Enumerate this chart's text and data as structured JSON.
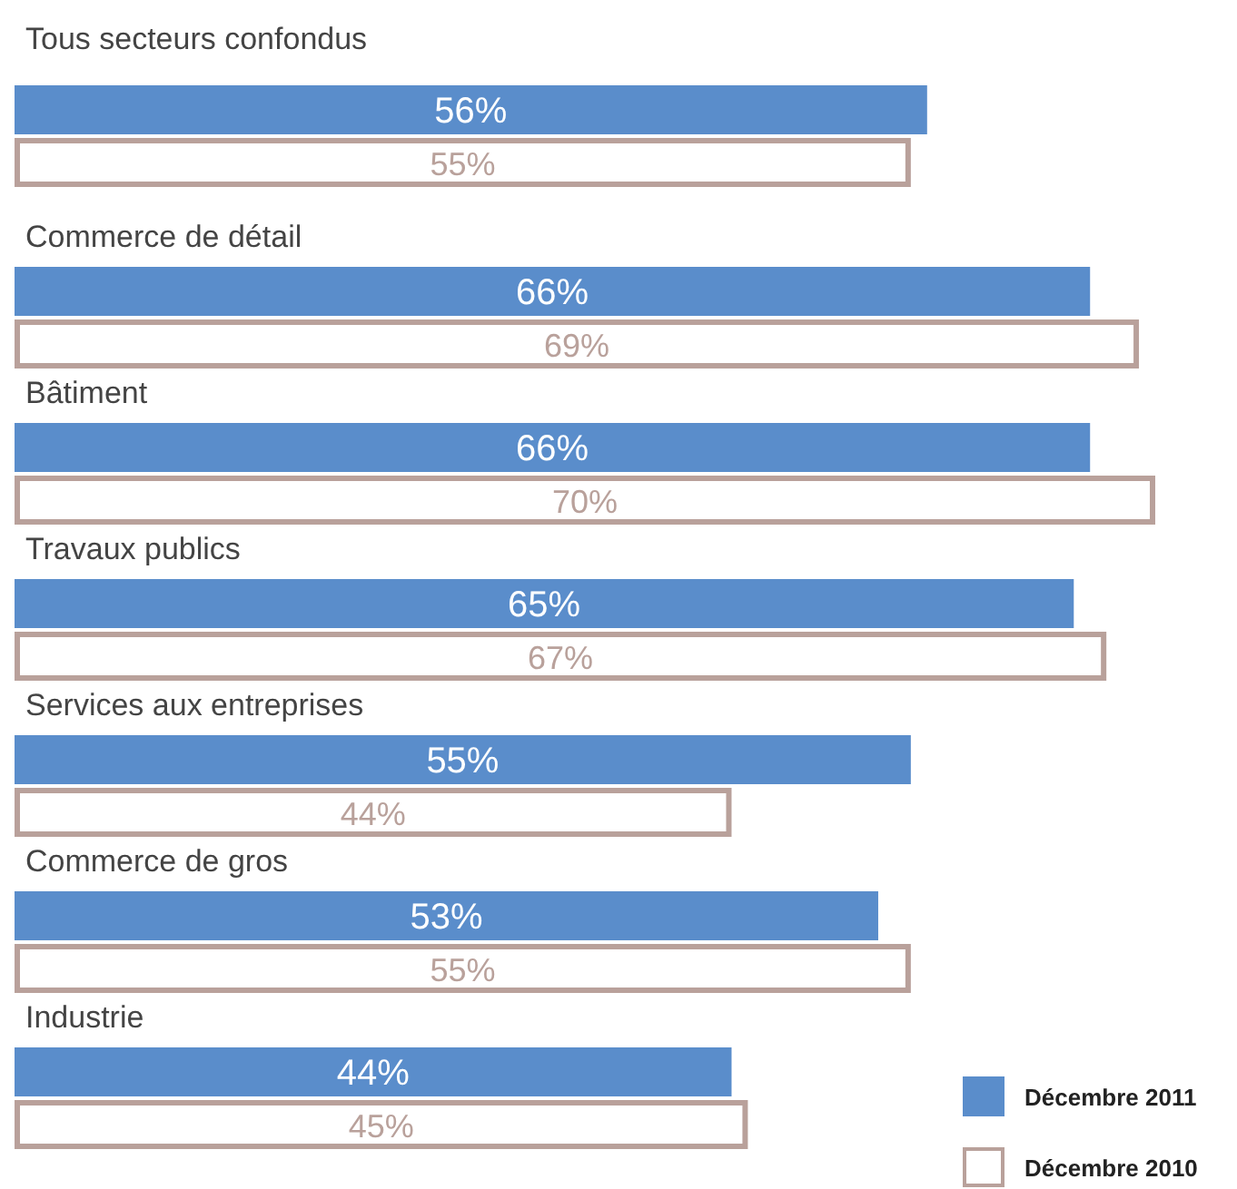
{
  "chart_data": {
    "type": "bar",
    "orientation": "horizontal",
    "categories": [
      "Tous secteurs confondus",
      "Commerce de détail",
      "Bâtiment",
      "Travaux publics",
      "Services aux entreprises",
      "Commerce de gros",
      "Industrie"
    ],
    "series": [
      {
        "name": "Décembre 2011",
        "color": "#5a8dcb",
        "values": [
          56,
          66,
          66,
          65,
          55,
          53,
          44
        ],
        "value_labels": [
          "56%",
          "66%",
          "66%",
          "65%",
          "55%",
          "53%",
          "44%"
        ]
      },
      {
        "name": "Décembre 2010",
        "color": "#b9a19b",
        "values": [
          55,
          69,
          70,
          67,
          44,
          55,
          45
        ],
        "value_labels": [
          "55%",
          "69%",
          "70%",
          "67%",
          "44%",
          "55%",
          "45%"
        ]
      }
    ],
    "legend": "bottom right"
  }
}
